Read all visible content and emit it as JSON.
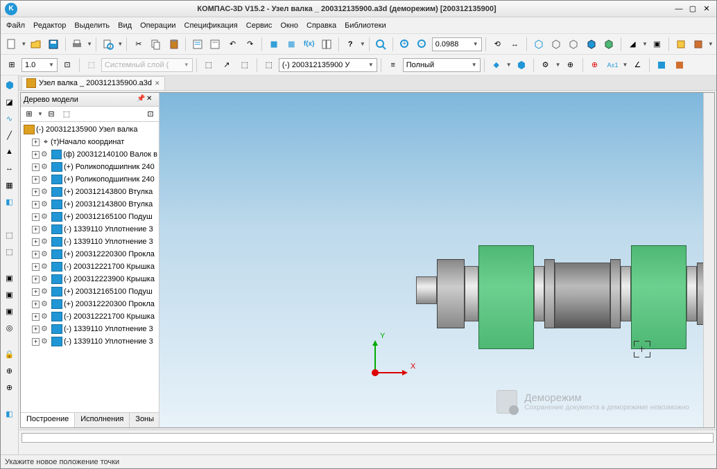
{
  "title": "КОМПАС-3D V15.2  - Узел валка _ 200312135900.a3d (деморежим) [200312135900]",
  "menu": {
    "file": "Файл",
    "edit": "Редактор",
    "select": "Выделить",
    "view": "Вид",
    "ops": "Операции",
    "spec": "Спецификация",
    "service": "Сервис",
    "window": "Окно",
    "help": "Справка",
    "libs": "Библиотеки"
  },
  "toolbar1": {
    "zoom_value": "0.0988"
  },
  "toolbar2": {
    "lineweight": "1.0",
    "layer": "Системный слой (",
    "orient": "(-) 200312135900 У",
    "style": "Полный"
  },
  "doctab": {
    "label": "Узел валка _ 200312135900.a3d"
  },
  "tree": {
    "title": "Дерево модели",
    "tabs": {
      "build": "Построение",
      "exec": "Исполнения",
      "zones": "Зоны"
    },
    "root": "(-) 200312135900 Узел валка",
    "origin": "(т)Начало координат",
    "items": [
      {
        "l": "(ф) 200312140100 Валок в"
      },
      {
        "l": "(+) Роликоподшипник 240"
      },
      {
        "l": "(+) Роликоподшипник 240"
      },
      {
        "l": "(+) 200312143800 Втулка"
      },
      {
        "l": "(+) 200312143800 Втулка"
      },
      {
        "l": "(+) 200312165100 Подуш"
      },
      {
        "l": "(-) 1339110 Уплотнение 3"
      },
      {
        "l": "(-) 1339110 Уплотнение 3"
      },
      {
        "l": "(+) 200312220300 Прокла"
      },
      {
        "l": "(-) 200312221700 Крышка"
      },
      {
        "l": "(-) 200312223900 Крышка"
      },
      {
        "l": "(+) 200312165100 Подуш"
      },
      {
        "l": "(+) 200312220300 Прокла"
      },
      {
        "l": "(-) 200312221700 Крышка"
      },
      {
        "l": "(-) 1339110 Уплотнение 3"
      },
      {
        "l": "(-) 1339110 Уплотнение 3"
      }
    ]
  },
  "axes": {
    "x": "X",
    "y": "Y"
  },
  "watermark": {
    "title": "Деморежим",
    "sub": "Сохранение документа в деморежиме невозможно"
  },
  "status": "Укажите новое положение точки",
  "colors": {
    "accent": "#2196d6",
    "green": "#4eb874"
  }
}
